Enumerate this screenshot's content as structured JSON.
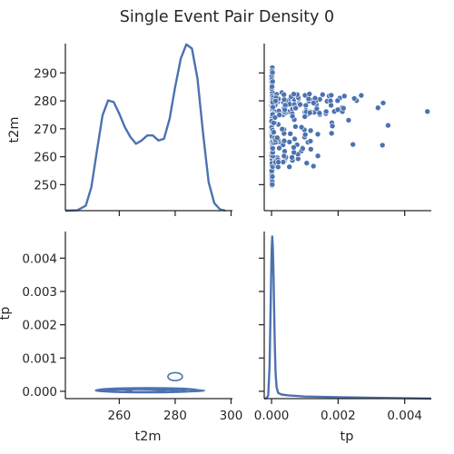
{
  "chart_data": {
    "type": "pairgrid",
    "title": "Single Event Pair Density 0",
    "variables": [
      "t2m",
      "tp"
    ],
    "colors": {
      "series": "#4c72b0",
      "point_edge": "#ffffff",
      "axis": "#262626",
      "background": "#ffffff"
    },
    "ranges": {
      "t2m": [
        240.7,
        300.5
      ],
      "tp": [
        -0.00022,
        0.0048
      ]
    },
    "ticks": {
      "t2m_y": [
        250,
        260,
        270,
        280,
        290
      ],
      "t2m_x": [
        260,
        280,
        300
      ],
      "tp_y": [
        0.0,
        0.001,
        0.002,
        0.003,
        0.004
      ],
      "tp_x": [
        0.0,
        0.002,
        0.004
      ]
    },
    "tick_labels": {
      "t2m_y": [
        "250",
        "260",
        "270",
        "280",
        "290"
      ],
      "t2m_x": [
        "260",
        "280",
        "300"
      ],
      "tp_y": [
        "0.000",
        "0.001",
        "0.002",
        "0.003",
        "0.004"
      ],
      "tp_x": [
        "0.000",
        "0.002",
        "0.004"
      ]
    },
    "t2m_kde": {
      "x": [
        240.7,
        245,
        248,
        250,
        252,
        254,
        256,
        258,
        260,
        262,
        264,
        266,
        268,
        270,
        272,
        274,
        276,
        278,
        280,
        282,
        284,
        286,
        288,
        290,
        292,
        294,
        296,
        298
      ],
      "density_rel": [
        0.0,
        0.002,
        0.03,
        0.14,
        0.36,
        0.57,
        0.66,
        0.65,
        0.58,
        0.5,
        0.44,
        0.4,
        0.42,
        0.45,
        0.45,
        0.42,
        0.43,
        0.55,
        0.74,
        0.91,
        0.995,
        0.97,
        0.79,
        0.46,
        0.17,
        0.045,
        0.008,
        0.0
      ]
    },
    "tp_kde": {
      "x": [
        -0.00022,
        -0.00015,
        -0.0001,
        -6e-05,
        -3e-05,
        0.0,
        2e-05,
        4e-05,
        6e-05,
        8e-05,
        0.0001,
        0.00012,
        0.00015,
        0.0002,
        0.0003,
        0.0005,
        0.001,
        0.002,
        0.003,
        0.004,
        0.0048
      ],
      "density_rel": [
        0.0,
        0.002,
        0.02,
        0.2,
        0.55,
        0.9,
        1.0,
        0.93,
        0.75,
        0.52,
        0.32,
        0.16,
        0.07,
        0.035,
        0.025,
        0.02,
        0.013,
        0.009,
        0.005,
        0.002,
        0.0
      ]
    },
    "scatter": {
      "clusters": [
        {
          "t2m_range": [
            249,
            292
          ],
          "tp_range": [
            0.0,
            3e-05
          ],
          "count": 200
        },
        {
          "t2m_range": [
            275,
            283
          ],
          "tp_range": [
            3e-05,
            0.0022
          ],
          "count": 85
        },
        {
          "t2m_range": [
            256,
            270
          ],
          "tp_range": [
            3e-05,
            0.0014
          ],
          "count": 55
        },
        {
          "t2m_range": [
            264,
            278
          ],
          "tp_range": [
            3e-05,
            0.0036
          ],
          "count": 25
        },
        {
          "t2m_range": [
            262,
            283
          ],
          "tp_range": [
            0.0001,
            0.0047
          ],
          "count": 18
        }
      ]
    },
    "contours": [
      {
        "t2m": 270,
        "tp": 3e-05,
        "rx": 18.5,
        "ry": 7.5e-05
      },
      {
        "t2m": 270,
        "tp": 3e-05,
        "rx": 17.0,
        "ry": 6e-05
      },
      {
        "t2m": 269,
        "tp": 3e-05,
        "rx": 15.0,
        "ry": 5e-05
      },
      {
        "t2m": 268,
        "tp": 2e-05,
        "rx": 13.0,
        "ry": 3.8e-05
      },
      {
        "t2m": 266,
        "tp": 2e-05,
        "rx": 10.5,
        "ry": 2.8e-05
      },
      {
        "t2m": 282,
        "tp": 2e-05,
        "rx": 8.5,
        "ry": 2.8e-05
      },
      {
        "t2m": 258,
        "tp": 2e-05,
        "rx": 6.5,
        "ry": 2e-05
      },
      {
        "t2m": 280,
        "tp": 0.00044,
        "rx": 2.6,
        "ry": 0.00012
      }
    ]
  }
}
